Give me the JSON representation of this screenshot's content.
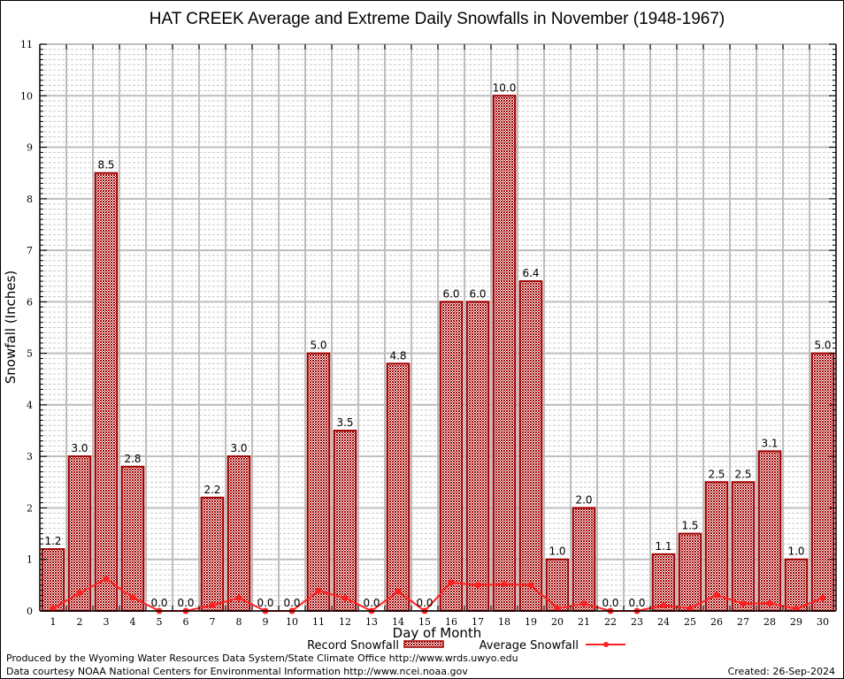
{
  "chart_data": {
    "type": "bar",
    "title": "HAT CREEK Average and Extreme Daily Snowfalls in November (1948-1967)",
    "xlabel": "Day of Month",
    "ylabel": "Snowfall (Inches)",
    "ylim": [
      0,
      11
    ],
    "yticks": [
      "0",
      "1",
      "2",
      "3",
      "4",
      "5",
      "6",
      "7",
      "8",
      "9",
      "10",
      "11"
    ],
    "categories": [
      "1",
      "2",
      "3",
      "4",
      "5",
      "6",
      "7",
      "8",
      "9",
      "10",
      "11",
      "12",
      "13",
      "14",
      "15",
      "16",
      "17",
      "18",
      "19",
      "20",
      "21",
      "22",
      "23",
      "24",
      "25",
      "26",
      "27",
      "28",
      "29",
      "30"
    ],
    "grid": true,
    "legend_position": "bottom-center",
    "series": [
      {
        "name": "Record Snowfall",
        "type": "bar",
        "color": "#a00000",
        "values": [
          1.2,
          3.0,
          8.5,
          2.8,
          0.0,
          0.0,
          2.2,
          3.0,
          0.0,
          0.0,
          5.0,
          3.5,
          0.0,
          4.8,
          0.0,
          6.0,
          6.0,
          10.0,
          6.4,
          1.0,
          2.0,
          0.0,
          0.0,
          1.1,
          1.5,
          2.5,
          2.5,
          3.1,
          1.0,
          5.0
        ],
        "labels": [
          "1.2",
          "3.0",
          "8.5",
          "2.8",
          "0.0",
          "0.0",
          "2.2",
          "3.0",
          "0.0",
          "0.0",
          "5.0",
          "3.5",
          "0.0",
          "4.8",
          "0.0",
          "6.0",
          "6.0",
          "10.0",
          "6.4",
          "1.0",
          "2.0",
          "0.0",
          "0.0",
          "1.1",
          "1.5",
          "2.5",
          "2.5",
          "3.1",
          "1.0",
          "5.0"
        ]
      },
      {
        "name": "Average Snowfall",
        "type": "line",
        "color": "#ff2020",
        "values": [
          0.05,
          0.35,
          0.62,
          0.26,
          0.0,
          0.0,
          0.11,
          0.25,
          0.0,
          0.0,
          0.39,
          0.25,
          0.0,
          0.38,
          0.0,
          0.55,
          0.5,
          0.52,
          0.5,
          0.05,
          0.14,
          0.0,
          0.0,
          0.11,
          0.05,
          0.31,
          0.14,
          0.15,
          0.04,
          0.25
        ]
      }
    ]
  },
  "footer": {
    "produced_by": "Produced by the Wyoming Water Resources Data System/State Climate Office http://www.wrds.uwyo.edu",
    "data_courtesy": "Data courtesy NOAA National Centers for Environmental Information http://www.ncei.noaa.gov",
    "created": "Created:  26-Sep-2024"
  }
}
